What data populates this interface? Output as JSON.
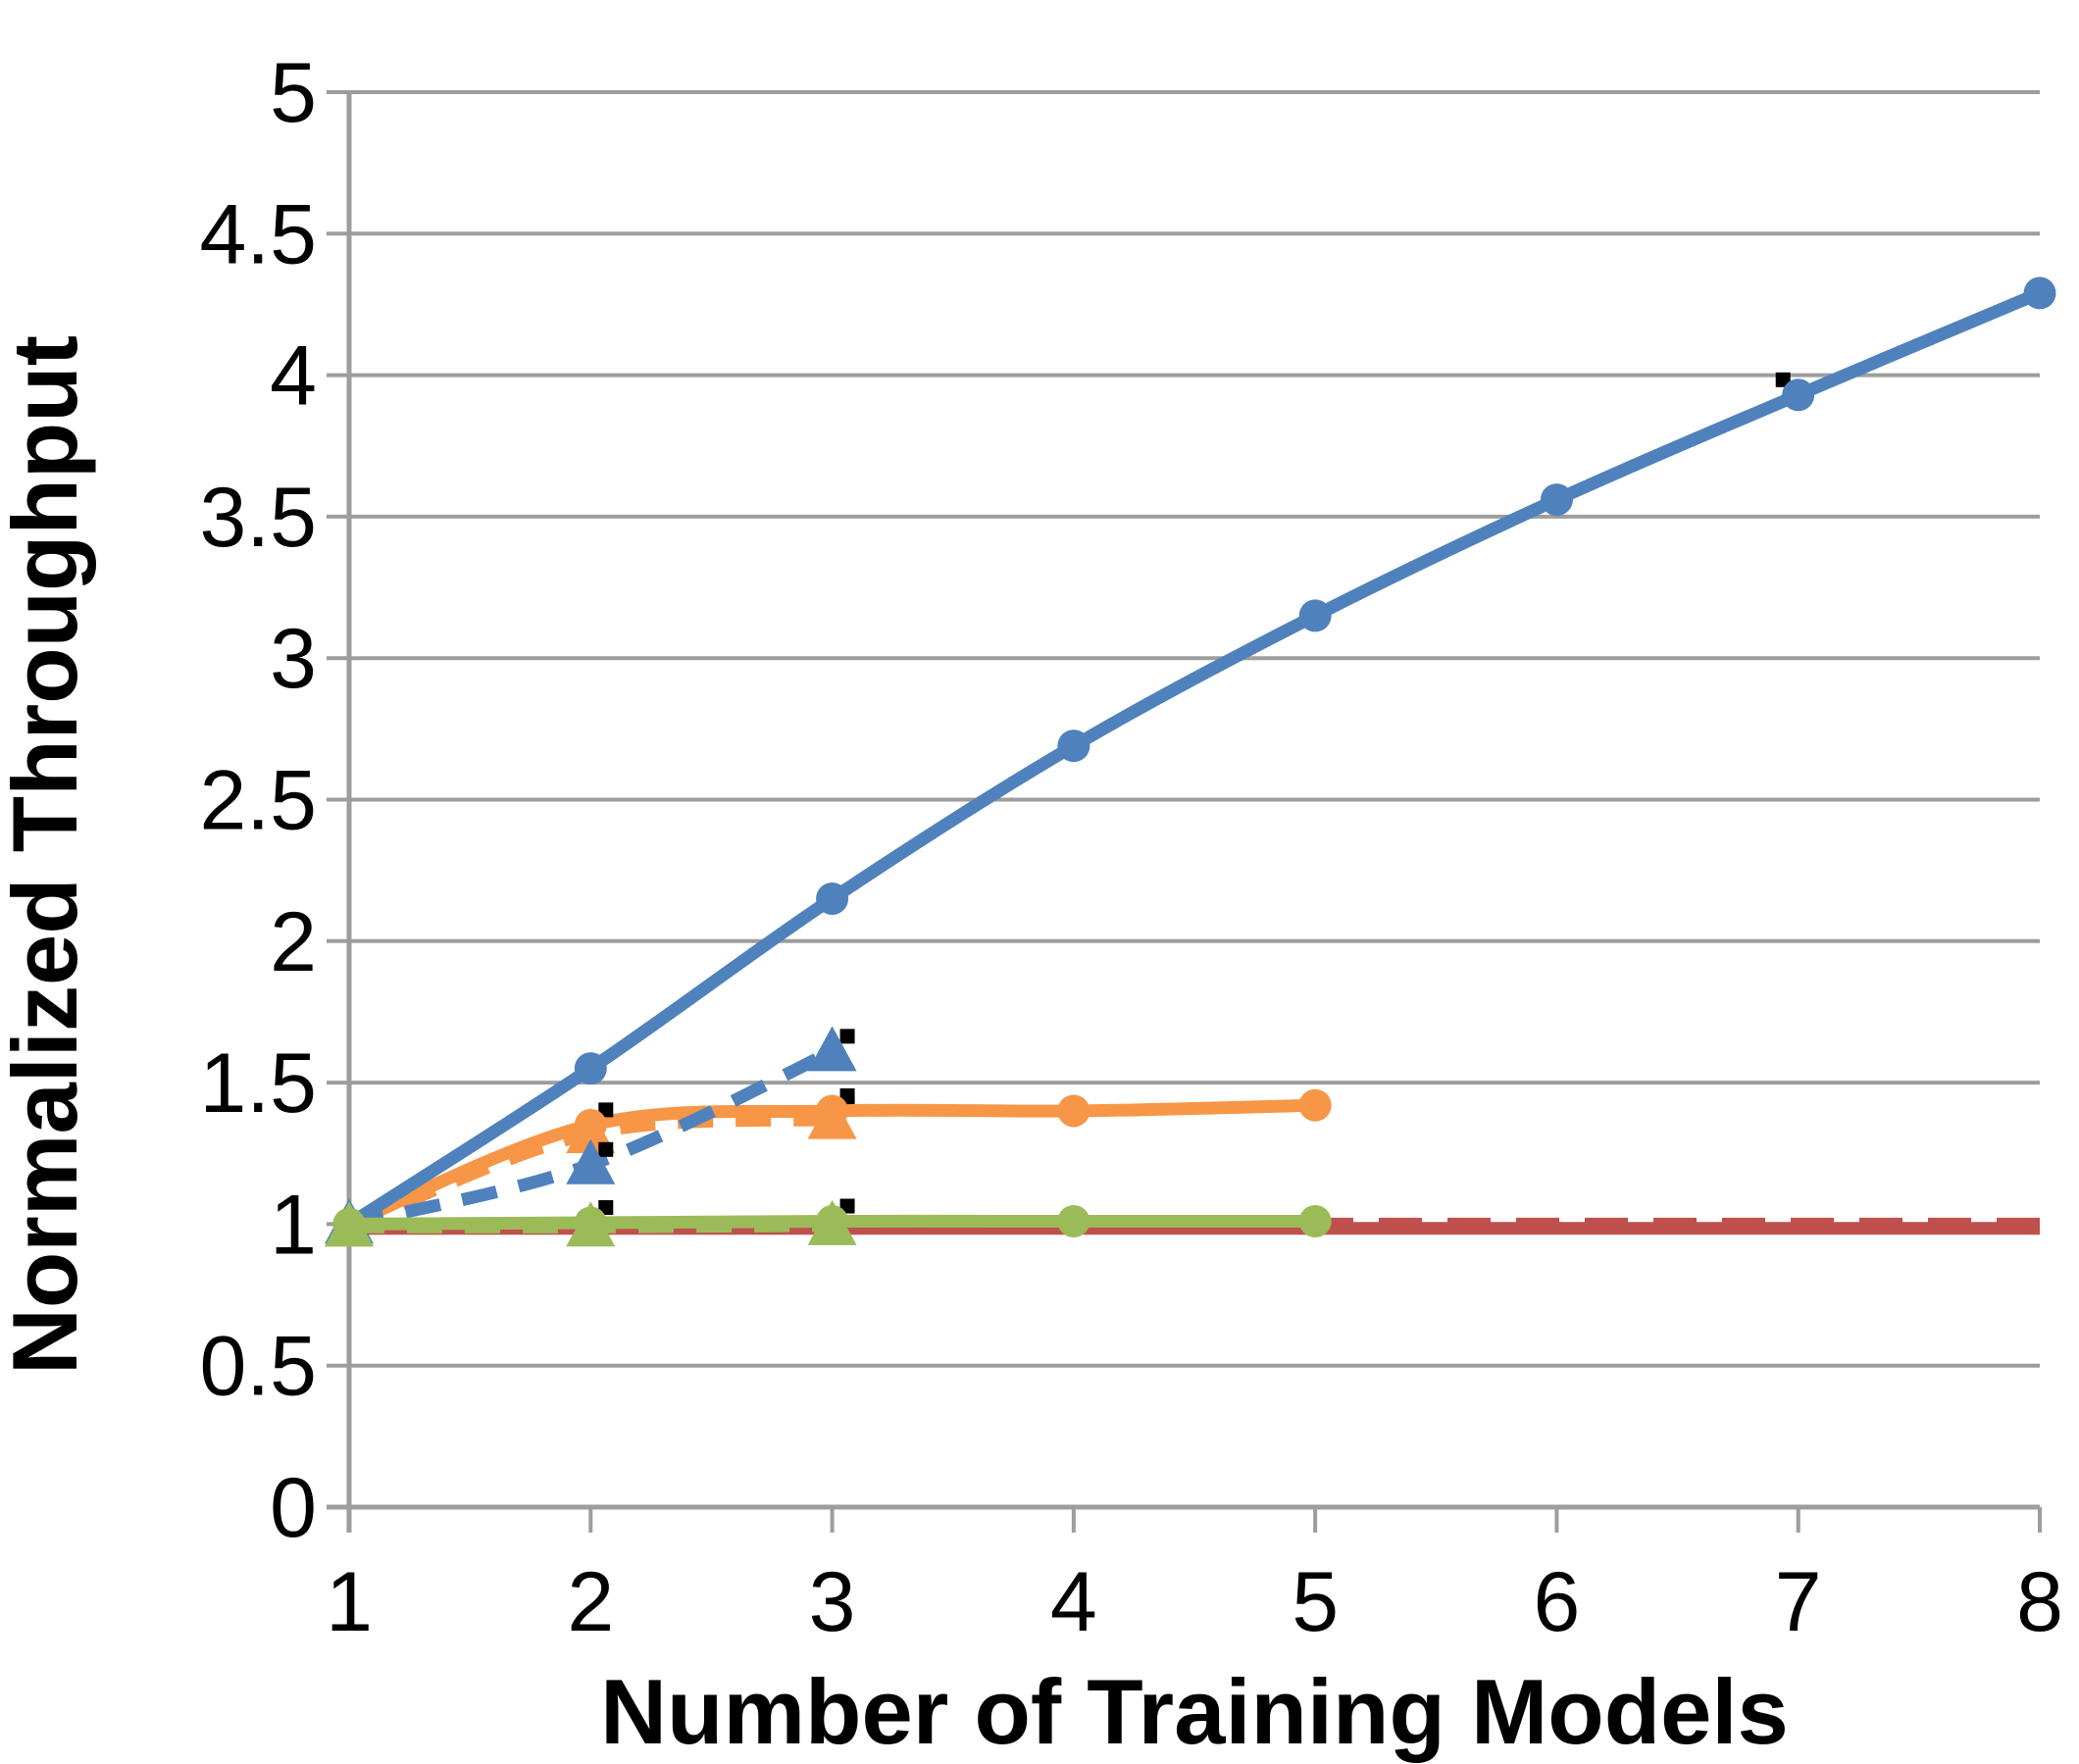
{
  "chart_data": {
    "type": "line",
    "title": "",
    "xlabel": "Number of Training Models",
    "ylabel": "Normalized Throughput",
    "xlim": [
      1,
      8
    ],
    "ylim": [
      0,
      5
    ],
    "x_tick_values": [
      1,
      2,
      3,
      4,
      5,
      6,
      7,
      8
    ],
    "x_tick_labels": [
      "1",
      "2",
      "3",
      "4",
      "5",
      "6",
      "7",
      "8"
    ],
    "y_tick_values": [
      0,
      0.5,
      1,
      1.5,
      2,
      2.5,
      3,
      3.5,
      4,
      4.5,
      5
    ],
    "y_tick_labels": [
      "0",
      "0.5",
      "1",
      "1.5",
      "2",
      "2.5",
      "3",
      "3.5",
      "4",
      "4.5",
      "5"
    ],
    "grid": "horizontal",
    "legend": "none",
    "series": [
      {
        "name": "red-solid-baseline",
        "color": "#C0504D",
        "line_style": "solid",
        "marker": "none",
        "points": [
          [
            1,
            0.985
          ],
          [
            8,
            0.985
          ]
        ]
      },
      {
        "name": "red-dashed-baseline",
        "color": "#C0504D",
        "line_style": "dashed",
        "marker": "none",
        "points": [
          [
            1,
            1.0
          ],
          [
            8,
            1.0
          ]
        ]
      },
      {
        "name": "orange-dashed-triangles",
        "color": "#F79646",
        "line_style": "dashed",
        "marker": "triangle",
        "points": [
          [
            1,
            0.99
          ],
          [
            2,
            1.32
          ],
          [
            3,
            1.37
          ]
        ]
      },
      {
        "name": "orange-solid-circles",
        "color": "#F79646",
        "line_style": "solid",
        "marker": "circle",
        "points": [
          [
            1,
            1.0
          ],
          [
            2,
            1.35
          ],
          [
            3,
            1.4
          ],
          [
            4,
            1.4
          ],
          [
            5,
            1.42
          ]
        ]
      },
      {
        "name": "blue-dashed-triangles",
        "color": "#4F81BD",
        "line_style": "dashed",
        "marker": "triangle",
        "points": [
          [
            1,
            1.0
          ],
          [
            2,
            1.21
          ],
          [
            3,
            1.61
          ]
        ]
      },
      {
        "name": "blue-solid-circles",
        "color": "#4F81BD",
        "line_style": "solid",
        "marker": "circle",
        "points": [
          [
            1,
            1.0
          ],
          [
            2,
            1.55
          ],
          [
            3,
            2.15
          ],
          [
            4,
            2.69
          ],
          [
            5,
            3.15
          ],
          [
            6,
            3.56
          ],
          [
            7,
            3.93
          ],
          [
            8,
            4.29
          ]
        ]
      },
      {
        "name": "green-dashed-triangles",
        "color": "#9BBB59",
        "line_style": "dashed",
        "marker": "triangle",
        "points": [
          [
            1,
            0.99
          ],
          [
            2,
            0.99
          ],
          [
            3,
            0.995
          ]
        ]
      },
      {
        "name": "green-solid-circles",
        "color": "#9BBB59",
        "line_style": "solid",
        "marker": "circle",
        "points": [
          [
            1,
            1.0
          ],
          [
            2,
            1.005
          ],
          [
            3,
            1.01
          ],
          [
            4,
            1.01
          ],
          [
            5,
            1.01
          ]
        ]
      }
    ],
    "error_bar_marks": [
      {
        "series": 2,
        "point": 2,
        "corner": "tr"
      },
      {
        "series": 3,
        "point": 1,
        "corner": "tr"
      },
      {
        "series": 3,
        "point": 2,
        "corner": "tr"
      },
      {
        "series": 4,
        "point": 1,
        "corner": "tr"
      },
      {
        "series": 4,
        "point": 2,
        "corner": "tr"
      },
      {
        "series": 5,
        "point": 6,
        "corner": "tl"
      },
      {
        "series": 7,
        "point": 1,
        "corner": "tr"
      },
      {
        "series": 7,
        "point": 2,
        "corner": "tr"
      }
    ]
  },
  "colors": {
    "blue": "#4F81BD",
    "red": "#C0504D",
    "green": "#9BBB59",
    "orange": "#F79646",
    "grid": "#9D9D9D",
    "error_mark": "#000000",
    "background": "#FFFFFF"
  }
}
